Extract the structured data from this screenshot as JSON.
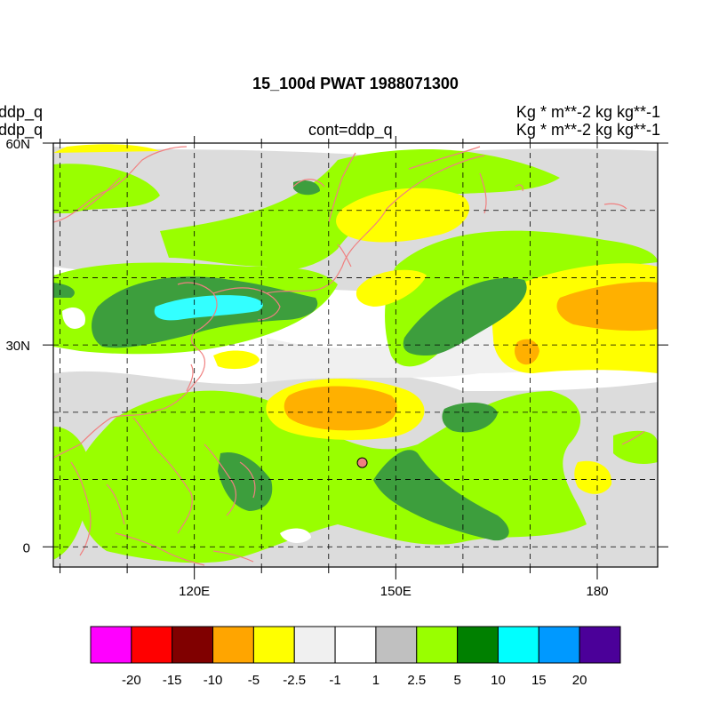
{
  "title": "15_100d PWAT  1988071300",
  "left_labels": [
    "ddp_q",
    "ddp_q"
  ],
  "center_label": "cont=ddp_q",
  "right_labels": [
    "Kg  * m**-2 kg kg**-1",
    "Kg  * m**-2 kg kg**-1"
  ],
  "map": {
    "lat_range": [
      -3,
      60
    ],
    "lon_range": [
      99,
      189
    ],
    "lat_ticks": [
      {
        "value": 0,
        "label": "0"
      },
      {
        "value": 30,
        "label": "30N"
      },
      {
        "value": 60,
        "label": "60N"
      }
    ],
    "lon_ticks": [
      {
        "value": 120,
        "label": "120E"
      },
      {
        "value": 150,
        "label": "150E"
      },
      {
        "value": 180,
        "label": "180"
      }
    ],
    "grid_lats": [
      0,
      10,
      20,
      30,
      40,
      50,
      60
    ],
    "grid_lons": [
      100,
      110,
      120,
      130,
      140,
      150,
      160,
      170,
      180
    ],
    "marker": {
      "lon": 145,
      "lat": 12.5
    }
  },
  "colorbar": {
    "colors": [
      "#ff00ff",
      "#ff0000",
      "#800000",
      "#ffa500",
      "#ffff00",
      "#f0f0f0",
      "#ffffff",
      "#c0c0c0",
      "#99ff00",
      "#008000",
      "#00ffff",
      "#0099ff",
      "#4b0099"
    ],
    "labels": [
      "-20",
      "-15",
      "-10",
      "-5",
      "-2.5",
      "-1",
      "1",
      "2.5",
      "5",
      "10",
      "15",
      "20"
    ]
  },
  "colors": {
    "coast": "#f08080",
    "grid": "#000000"
  }
}
